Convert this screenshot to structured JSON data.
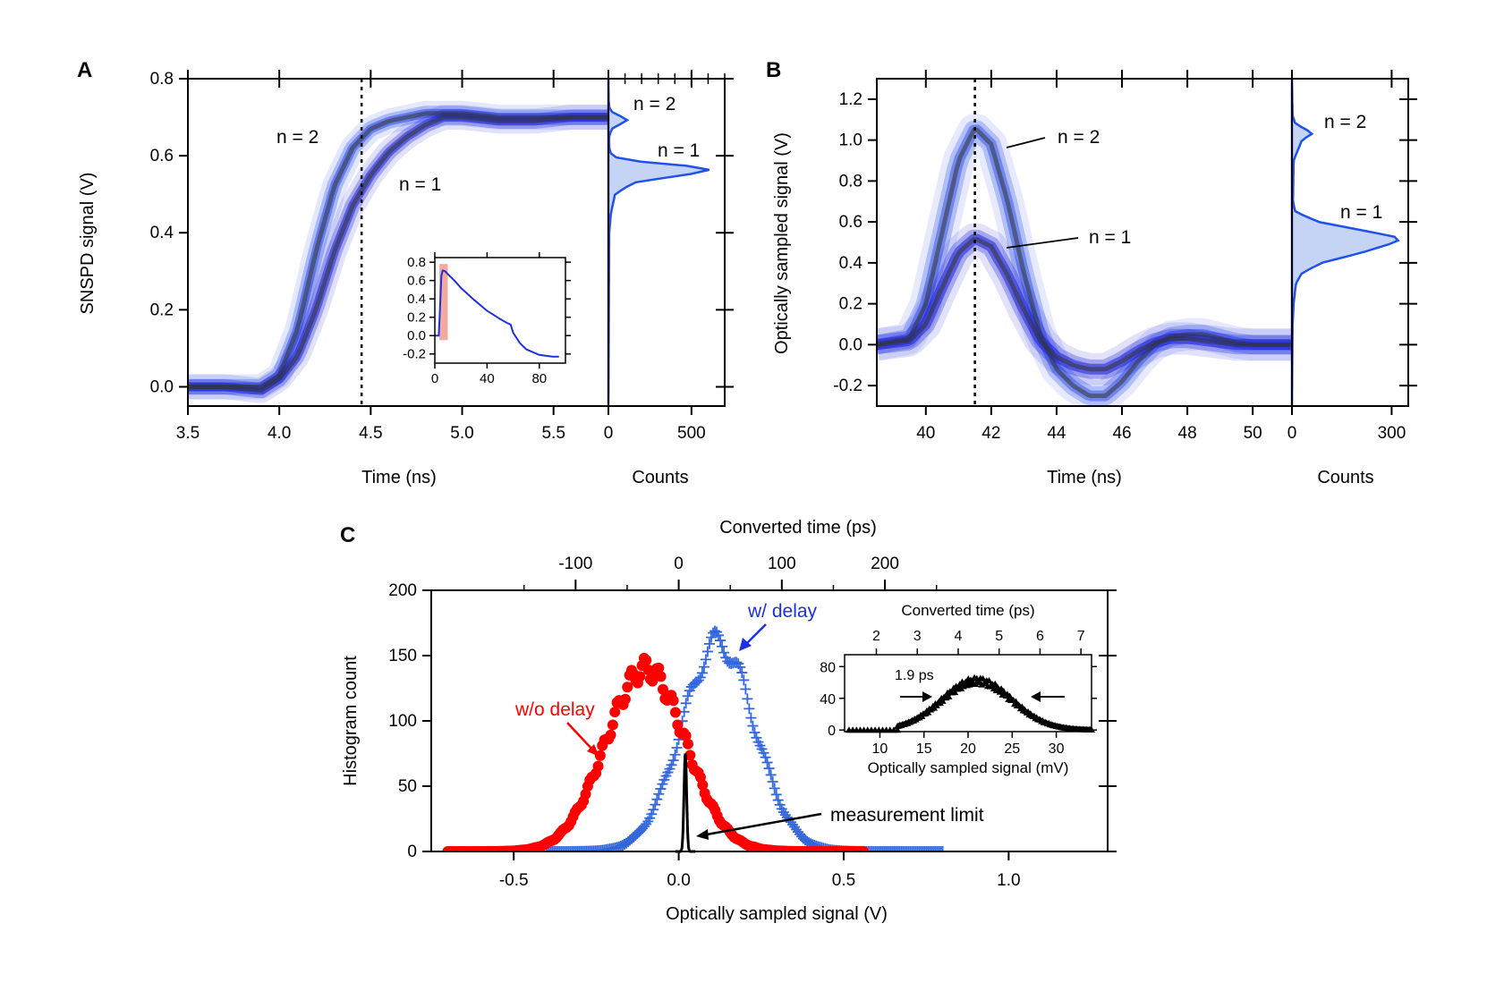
{
  "chart_data": [
    {
      "id": "A",
      "type": "line",
      "panel_label": "A",
      "xlabel": "Time (ns)",
      "ylabel": "SNSPD signal (V)",
      "xlim": [
        3.5,
        5.8
      ],
      "ylim": [
        -0.05,
        0.8
      ],
      "xticks": [
        3.5,
        4.0,
        4.5,
        5.0,
        5.5
      ],
      "xtick_labels": [
        "3.5",
        "4.0",
        "4.5",
        "5.0",
        "5.5"
      ],
      "yticks": [
        0.0,
        0.2,
        0.4,
        0.6,
        0.8
      ],
      "ytick_labels": [
        "0.0",
        "0.2",
        "0.4",
        "0.6",
        "0.8"
      ],
      "marker_line_x": 4.45,
      "annotations": {
        "n2": "n = 2",
        "n1": "n = 1"
      },
      "series": [
        {
          "name": "n = 2",
          "x": [
            3.5,
            3.7,
            3.9,
            4.0,
            4.1,
            4.2,
            4.3,
            4.4,
            4.5,
            4.6,
            4.7,
            4.8,
            4.9,
            5.0,
            5.2,
            5.4,
            5.6,
            5.8
          ],
          "y": [
            0.0,
            0.0,
            0.0,
            0.03,
            0.15,
            0.35,
            0.52,
            0.62,
            0.67,
            0.69,
            0.7,
            0.71,
            0.71,
            0.71,
            0.7,
            0.7,
            0.7,
            0.7
          ]
        },
        {
          "name": "n = 1",
          "x": [
            3.5,
            3.7,
            3.9,
            4.0,
            4.1,
            4.2,
            4.3,
            4.4,
            4.5,
            4.6,
            4.7,
            4.8,
            4.9,
            5.0,
            5.2,
            5.4,
            5.6,
            5.8
          ],
          "y": [
            0.0,
            0.0,
            -0.01,
            0.02,
            0.08,
            0.2,
            0.35,
            0.47,
            0.55,
            0.61,
            0.65,
            0.68,
            0.7,
            0.7,
            0.69,
            0.69,
            0.7,
            0.7
          ]
        }
      ],
      "histogram": {
        "xlabel": "Counts",
        "xlim": [
          0,
          700
        ],
        "xticks": [
          0,
          500
        ],
        "xtick_labels": [
          "0",
          "500"
        ],
        "annotations": {
          "n2": "n = 2",
          "n1": "n = 1"
        },
        "y": [
          0.4,
          0.45,
          0.5,
          0.53,
          0.55,
          0.56,
          0.57,
          0.58,
          0.59,
          0.6,
          0.62,
          0.65,
          0.67,
          0.68,
          0.69,
          0.7,
          0.71,
          0.72,
          0.74
        ],
        "counts": [
          5,
          15,
          40,
          150,
          450,
          620,
          580,
          300,
          80,
          20,
          5,
          5,
          20,
          60,
          120,
          90,
          30,
          8,
          2
        ]
      },
      "inset": {
        "xlim": [
          0,
          100
        ],
        "ylim": [
          -0.3,
          0.85
        ],
        "xticks": [
          0,
          40,
          80
        ],
        "xtick_labels": [
          "0",
          "40",
          "80"
        ],
        "yticks": [
          -0.2,
          0.0,
          0.2,
          0.4,
          0.6,
          0.8
        ],
        "ytick_labels": [
          "-0.2",
          "0.0",
          "0.2",
          "0.4",
          "0.6",
          "0.8"
        ],
        "highlight_x": [
          3.5,
          5.8
        ],
        "x": [
          0,
          3,
          4,
          5,
          6,
          8,
          10,
          15,
          20,
          30,
          40,
          50,
          55,
          58,
          60,
          65,
          70,
          80,
          90,
          95
        ],
        "y": [
          0,
          0,
          0.3,
          0.65,
          0.71,
          0.7,
          0.67,
          0.6,
          0.52,
          0.39,
          0.27,
          0.18,
          0.14,
          0.12,
          0.03,
          -0.08,
          -0.15,
          -0.21,
          -0.23,
          -0.23
        ]
      }
    },
    {
      "id": "B",
      "type": "line",
      "panel_label": "B",
      "xlabel": "Time (ns)",
      "ylabel": "Optically sampled signal (V)",
      "xlim": [
        38.5,
        51.2
      ],
      "ylim": [
        -0.3,
        1.3
      ],
      "xticks": [
        40,
        42,
        44,
        46,
        48,
        50
      ],
      "xtick_labels": [
        "40",
        "42",
        "44",
        "46",
        "48",
        "50"
      ],
      "yticks": [
        -0.2,
        0.0,
        0.2,
        0.4,
        0.6,
        0.8,
        1.0,
        1.2
      ],
      "ytick_labels": [
        "-0.2",
        "0.0",
        "0.2",
        "0.4",
        "0.6",
        "0.8",
        "1.0",
        "1.2"
      ],
      "marker_line_x": 41.5,
      "annotations": {
        "n2": "n = 2",
        "n1": "n = 1"
      },
      "series": [
        {
          "name": "n = 2",
          "x": [
            38.5,
            39.5,
            40.0,
            40.5,
            41.0,
            41.5,
            42.0,
            42.5,
            43.0,
            43.5,
            44.0,
            44.5,
            45.0,
            45.5,
            46.0,
            46.5,
            47.0,
            47.5,
            48.0,
            48.5,
            49.0,
            49.5,
            50.0,
            51.2
          ],
          "y": [
            0.0,
            0.03,
            0.2,
            0.55,
            0.9,
            1.06,
            0.98,
            0.7,
            0.35,
            0.05,
            -0.12,
            -0.2,
            -0.25,
            -0.25,
            -0.18,
            -0.08,
            0.0,
            0.04,
            0.05,
            0.05,
            0.03,
            0.01,
            0.0,
            0.0
          ]
        },
        {
          "name": "n = 1",
          "x": [
            38.5,
            39.5,
            40.0,
            40.5,
            41.0,
            41.5,
            42.0,
            42.5,
            43.0,
            43.5,
            44.0,
            44.5,
            45.0,
            45.5,
            46.0,
            46.5,
            47.0,
            47.5,
            48.0,
            48.5,
            49.0,
            49.5,
            50.0,
            51.2
          ],
          "y": [
            0.0,
            0.02,
            0.1,
            0.28,
            0.45,
            0.52,
            0.48,
            0.34,
            0.17,
            0.02,
            -0.06,
            -0.1,
            -0.12,
            -0.12,
            -0.08,
            -0.03,
            0.01,
            0.03,
            0.03,
            0.02,
            0.01,
            0.0,
            0.0,
            0.0
          ]
        }
      ],
      "histogram": {
        "xlabel": "Counts",
        "xlim": [
          0,
          350
        ],
        "xticks": [
          0,
          300
        ],
        "xtick_labels": [
          "0",
          "300"
        ],
        "annotations": {
          "n2": "n = 2",
          "n1": "n = 1"
        },
        "y": [
          0.1,
          0.2,
          0.3,
          0.35,
          0.4,
          0.45,
          0.5,
          0.52,
          0.55,
          0.6,
          0.65,
          0.7,
          0.9,
          1.0,
          1.03,
          1.05,
          1.08,
          1.12
        ],
        "counts": [
          2,
          5,
          12,
          30,
          90,
          210,
          310,
          330,
          240,
          80,
          10,
          3,
          5,
          30,
          60,
          45,
          10,
          2
        ]
      }
    },
    {
      "id": "C",
      "type": "scatter",
      "panel_label": "C",
      "xlabel": "Optically sampled signal (V)",
      "ylabel": "Histogram count",
      "top_xlabel": "Converted time (ps)",
      "xlim": [
        -0.75,
        1.3
      ],
      "ylim": [
        0,
        200
      ],
      "xticks": [
        -0.5,
        0.0,
        0.5,
        1.0
      ],
      "xtick_labels": [
        "-0.5",
        "0.0",
        "0.5",
        "1.0"
      ],
      "yticks": [
        0,
        50,
        100,
        150,
        200
      ],
      "ytick_labels": [
        "0",
        "50",
        "100",
        "150",
        "200"
      ],
      "top_xticks_ps": [
        -100,
        0,
        100,
        200
      ],
      "top_xtick_labels": [
        "-100",
        "0",
        "100",
        "200"
      ],
      "annotations": {
        "wo": "w/o delay",
        "w": "w/ delay",
        "limit": "measurement limit"
      },
      "series": [
        {
          "name": "w/o delay",
          "color": "#ff0000",
          "mu": -0.1,
          "sigma": 0.12,
          "peak": 140,
          "x_range": [
            -0.7,
            0.56
          ]
        },
        {
          "name": "w/ delay",
          "color": "#3366dd",
          "mu": 0.12,
          "sigma": 0.11,
          "peak": 160,
          "x_range": [
            -0.4,
            0.8
          ]
        },
        {
          "name": "measurement limit",
          "color": "#000000",
          "mu": 0.02,
          "sigma": 0.004,
          "peak": 75
        }
      ],
      "inset": {
        "xlabel": "Optically sampled signal (mV)",
        "top_xlabel": "Converted time (ps)",
        "xlim": [
          6,
          34
        ],
        "ylim": [
          -2,
          95
        ],
        "xticks": [
          10,
          15,
          20,
          25,
          30
        ],
        "xtick_labels": [
          "10",
          "15",
          "20",
          "25",
          "30"
        ],
        "yticks": [
          0,
          40,
          80
        ],
        "ytick_labels": [
          "0",
          "40",
          "80"
        ],
        "top_xticks_ps": [
          2,
          3,
          4,
          5,
          6,
          7
        ],
        "top_xtick_labels": [
          "2",
          "3",
          "4",
          "5",
          "6",
          "7"
        ],
        "annotation": "1.9 ps",
        "mu": 21,
        "sigma": 4,
        "peak": 62
      }
    }
  ]
}
